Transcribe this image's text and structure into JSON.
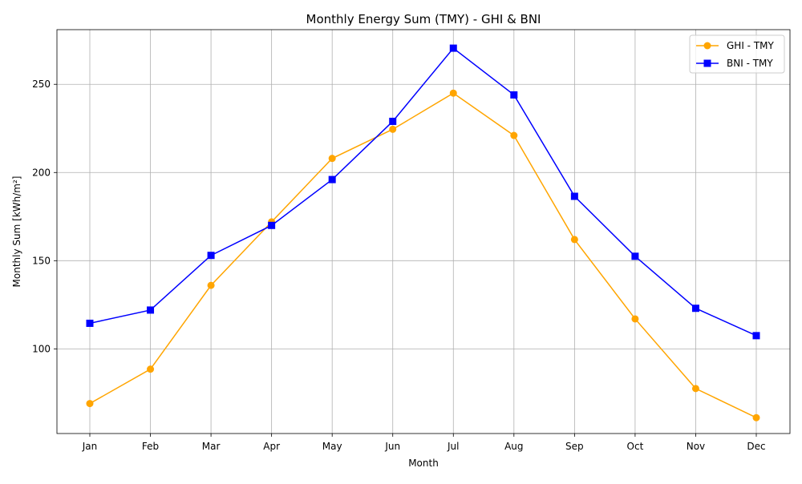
{
  "chart_data": {
    "type": "line",
    "title": "Monthly Energy Sum (TMY) - GHI & BNI",
    "xlabel": "Month",
    "ylabel": "Monthly Sum [kWh/m²]",
    "categories": [
      "Jan",
      "Feb",
      "Mar",
      "Apr",
      "May",
      "Jun",
      "Jul",
      "Aug",
      "Sep",
      "Oct",
      "Nov",
      "Dec"
    ],
    "ylim": [
      52,
      281
    ],
    "yticks": [
      100,
      150,
      200,
      250
    ],
    "grid": true,
    "legend_position": "top-right",
    "series": [
      {
        "name": "GHI - TMY",
        "color": "#ffa500",
        "marker": "circle",
        "values": [
          69,
          88.5,
          136,
          172,
          208,
          224.5,
          245,
          221,
          162,
          117,
          77.5,
          61
        ]
      },
      {
        "name": "BNI - TMY",
        "color": "#0000ff",
        "marker": "square",
        "values": [
          114.5,
          122,
          153,
          170,
          196,
          229,
          270.5,
          244,
          186.5,
          152.5,
          123,
          107.5
        ]
      }
    ]
  }
}
